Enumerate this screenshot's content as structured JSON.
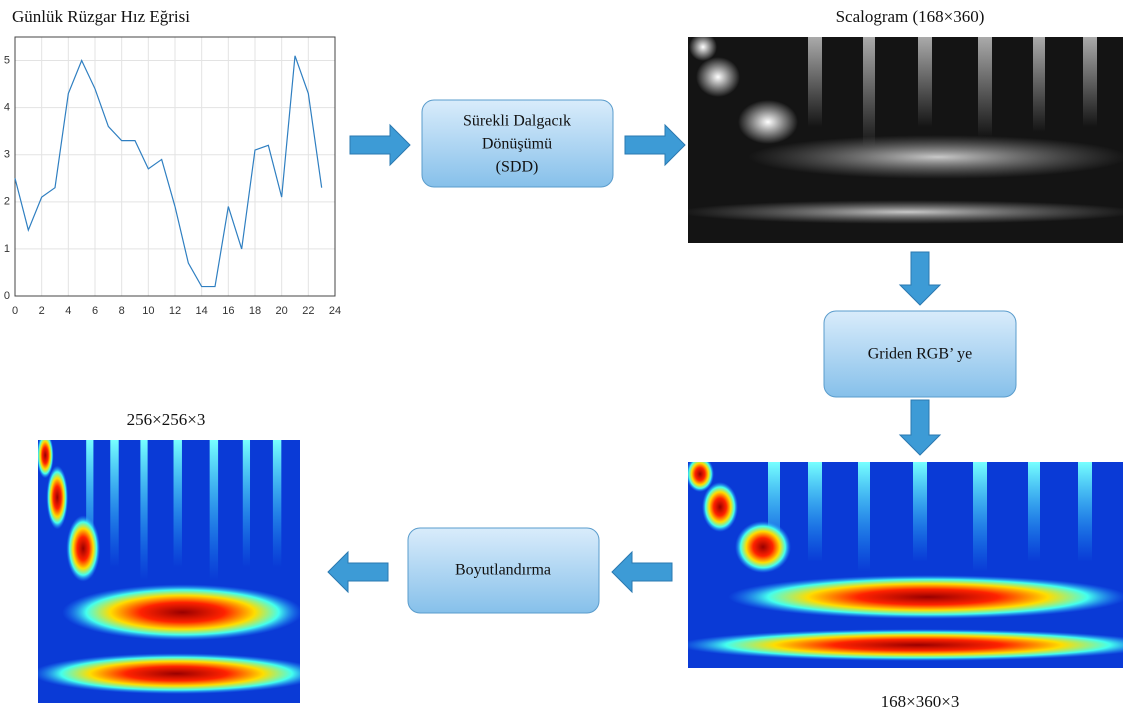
{
  "line_chart": {
    "type": "line",
    "title": "Günlük Rüzgar Hız Eğrisi",
    "x": [
      0,
      1,
      2,
      3,
      4,
      5,
      6,
      7,
      8,
      9,
      10,
      11,
      12,
      13,
      14,
      15,
      16,
      17,
      18,
      19,
      20,
      21,
      22,
      23
    ],
    "values": [
      2.5,
      1.4,
      2.1,
      2.3,
      4.3,
      5.0,
      4.4,
      3.6,
      3.3,
      3.3,
      2.7,
      2.9,
      1.9,
      0.7,
      0.2,
      0.2,
      1.9,
      1.0,
      3.1,
      3.2,
      2.1,
      5.1,
      4.3,
      2.3
    ],
    "color": "#2f7fc1",
    "xlim": [
      0,
      24
    ],
    "xticks": [
      0,
      2,
      4,
      6,
      8,
      10,
      12,
      14,
      16,
      18,
      20,
      22,
      24
    ],
    "ylim": [
      0,
      5.5
    ],
    "yticks": [
      0,
      1,
      2,
      3,
      4,
      5
    ],
    "grid": true
  },
  "nodes": [
    {
      "lines": [
        "Sürekli Dalgacık",
        "Dönüşümü",
        "(SDD)"
      ]
    },
    {
      "lines": [
        "Griden RGB’ ye"
      ]
    },
    {
      "lines": [
        "Boyutlandırma"
      ]
    }
  ],
  "images": [
    {
      "caption": "Scalogram (168×360)"
    },
    {
      "caption": "168×360×3"
    },
    {
      "caption": "256×256×3"
    }
  ]
}
